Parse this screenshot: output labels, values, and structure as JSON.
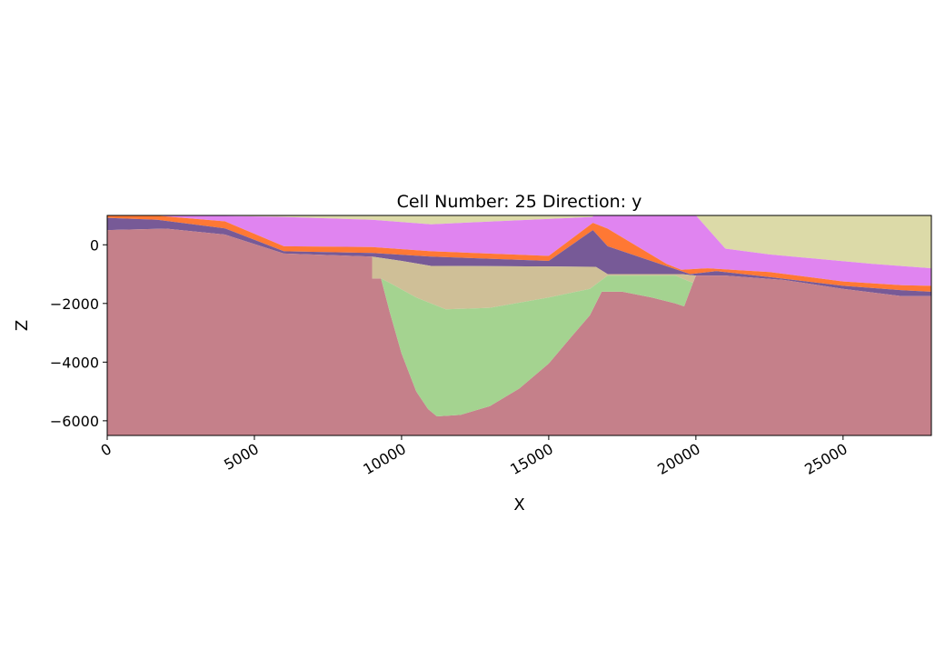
{
  "chart_data": {
    "type": "heatmap",
    "title": "Cell Number: 25 Direction: y",
    "xlabel": "X",
    "ylabel": "Z",
    "xlim": [
      0,
      28000
    ],
    "ylim": [
      -6500,
      1000
    ],
    "xticks": [
      0,
      5000,
      10000,
      15000,
      20000,
      25000
    ],
    "xtick_labels": [
      "0",
      "5000",
      "10000",
      "15000",
      "20000",
      "25000"
    ],
    "yticks": [
      0,
      -2000,
      -4000,
      -6000
    ],
    "ytick_labels": [
      "0",
      "−2000",
      "−4000",
      "−6000"
    ],
    "grid": false,
    "legend": "none",
    "colors": {
      "basement": "#c5808a",
      "intrusion": "#a4d390",
      "tan": "#cfbf97",
      "purple": "#775a97",
      "orange": "#ff7834",
      "pink": "#e084f0",
      "khaki": "#dcdaa8"
    },
    "units": [
      {
        "name": "khaki",
        "points": [
          [
            0,
            1000
          ],
          [
            28000,
            1000
          ],
          [
            28000,
            -800
          ],
          [
            26000,
            -650
          ],
          [
            22500,
            -330
          ],
          [
            21000,
            -130
          ],
          [
            20000,
            1000
          ],
          [
            16500,
            1000
          ],
          [
            16500,
            950
          ],
          [
            11000,
            700
          ],
          [
            9000,
            850
          ],
          [
            6000,
            950
          ],
          [
            3000,
            1000
          ]
        ]
      },
      {
        "name": "pink",
        "points": [
          [
            0,
            1000
          ],
          [
            3000,
            1000
          ],
          [
            6000,
            950
          ],
          [
            9000,
            850
          ],
          [
            11000,
            700
          ],
          [
            16500,
            950
          ],
          [
            16500,
            1000
          ],
          [
            20000,
            1000
          ],
          [
            21000,
            -130
          ],
          [
            22500,
            -330
          ],
          [
            26000,
            -650
          ],
          [
            28000,
            -800
          ],
          [
            28000,
            -1400
          ],
          [
            27000,
            -1380
          ],
          [
            25000,
            -1250
          ],
          [
            22500,
            -930
          ],
          [
            20400,
            -800
          ],
          [
            19500,
            -850
          ],
          [
            19000,
            -650
          ],
          [
            17000,
            550
          ],
          [
            16500,
            750
          ],
          [
            15000,
            -380
          ],
          [
            11000,
            -220
          ],
          [
            9000,
            -80
          ],
          [
            6000,
            -50
          ],
          [
            4000,
            800
          ],
          [
            1700,
            990
          ],
          [
            0,
            1000
          ]
        ]
      },
      {
        "name": "orange",
        "points": [
          [
            0,
            1000
          ],
          [
            1700,
            990
          ],
          [
            4000,
            800
          ],
          [
            6000,
            -50
          ],
          [
            9000,
            -80
          ],
          [
            11000,
            -220
          ],
          [
            15000,
            -380
          ],
          [
            16500,
            750
          ],
          [
            17000,
            550
          ],
          [
            19000,
            -650
          ],
          [
            19500,
            -850
          ],
          [
            20400,
            -800
          ],
          [
            22500,
            -930
          ],
          [
            25000,
            -1250
          ],
          [
            27000,
            -1380
          ],
          [
            28000,
            -1400
          ],
          [
            28000,
            -1600
          ],
          [
            27000,
            -1550
          ],
          [
            25000,
            -1400
          ],
          [
            22500,
            -1100
          ],
          [
            20700,
            -900
          ],
          [
            19800,
            -1000
          ],
          [
            17000,
            -50
          ],
          [
            16500,
            500
          ],
          [
            15000,
            -550
          ],
          [
            11000,
            -400
          ],
          [
            9000,
            -280
          ],
          [
            6000,
            -220
          ],
          [
            4000,
            560
          ],
          [
            1700,
            850
          ],
          [
            0,
            920
          ]
        ]
      },
      {
        "name": "purple",
        "points": [
          [
            0,
            920
          ],
          [
            1700,
            850
          ],
          [
            4000,
            560
          ],
          [
            6000,
            -220
          ],
          [
            9000,
            -280
          ],
          [
            11000,
            -400
          ],
          [
            15000,
            -550
          ],
          [
            16500,
            500
          ],
          [
            17000,
            -50
          ],
          [
            19800,
            -1000
          ],
          [
            20700,
            -900
          ],
          [
            22500,
            -1100
          ],
          [
            25000,
            -1400
          ],
          [
            27000,
            -1550
          ],
          [
            28000,
            -1600
          ],
          [
            28000,
            -1750
          ],
          [
            27000,
            -1750
          ],
          [
            25000,
            -1500
          ],
          [
            23000,
            -1200
          ],
          [
            21000,
            -1050
          ],
          [
            20000,
            -1050
          ],
          [
            19500,
            -1000
          ],
          [
            17000,
            -1000
          ],
          [
            16600,
            -750
          ],
          [
            15000,
            -740
          ],
          [
            11000,
            -720
          ],
          [
            10000,
            -550
          ],
          [
            9000,
            -400
          ],
          [
            6000,
            -300
          ],
          [
            4000,
            350
          ],
          [
            2000,
            550
          ],
          [
            0,
            500
          ]
        ]
      },
      {
        "name": "basement",
        "points": [
          [
            0,
            500
          ],
          [
            2000,
            550
          ],
          [
            4000,
            350
          ],
          [
            6000,
            -300
          ],
          [
            9000,
            -400
          ],
          [
            9000,
            -1150
          ],
          [
            9300,
            -1150
          ],
          [
            9600,
            -2300
          ],
          [
            10000,
            -3700
          ],
          [
            10500,
            -5000
          ],
          [
            10900,
            -5600
          ],
          [
            11200,
            -5850
          ],
          [
            12000,
            -5800
          ],
          [
            13000,
            -5500
          ],
          [
            14000,
            -4900
          ],
          [
            15000,
            -4050
          ],
          [
            15800,
            -3100
          ],
          [
            16400,
            -2400
          ],
          [
            16800,
            -1600
          ],
          [
            17500,
            -1600
          ],
          [
            18500,
            -1800
          ],
          [
            19300,
            -2000
          ],
          [
            19600,
            -2100
          ],
          [
            19900,
            -1300
          ],
          [
            20000,
            -1050
          ],
          [
            21000,
            -1050
          ],
          [
            23000,
            -1200
          ],
          [
            25000,
            -1500
          ],
          [
            27000,
            -1750
          ],
          [
            28000,
            -1750
          ],
          [
            28000,
            -6500
          ],
          [
            0,
            -6500
          ]
        ]
      },
      {
        "name": "tan",
        "points": [
          [
            9000,
            -400
          ],
          [
            10000,
            -550
          ],
          [
            11000,
            -720
          ],
          [
            15000,
            -740
          ],
          [
            16600,
            -750
          ],
          [
            17000,
            -1000
          ],
          [
            19500,
            -1000
          ],
          [
            20000,
            -1050
          ],
          [
            19900,
            -1300
          ],
          [
            19300,
            -1050
          ],
          [
            17000,
            -1050
          ],
          [
            16400,
            -1500
          ],
          [
            15000,
            -1800
          ],
          [
            13000,
            -2150
          ],
          [
            11500,
            -2200
          ],
          [
            10500,
            -1800
          ],
          [
            9600,
            -1300
          ],
          [
            9300,
            -1150
          ],
          [
            9000,
            -1150
          ]
        ]
      },
      {
        "name": "intrusion",
        "points": [
          [
            9300,
            -1150
          ],
          [
            9600,
            -1300
          ],
          [
            10500,
            -1800
          ],
          [
            11500,
            -2200
          ],
          [
            13000,
            -2150
          ],
          [
            15000,
            -1800
          ],
          [
            16400,
            -1500
          ],
          [
            17000,
            -1050
          ],
          [
            19300,
            -1050
          ],
          [
            19900,
            -1300
          ],
          [
            19600,
            -2100
          ],
          [
            19300,
            -2000
          ],
          [
            18500,
            -1800
          ],
          [
            17500,
            -1600
          ],
          [
            16800,
            -1600
          ],
          [
            16400,
            -2400
          ],
          [
            15800,
            -3100
          ],
          [
            15000,
            -4050
          ],
          [
            14000,
            -4900
          ],
          [
            13000,
            -5500
          ],
          [
            12000,
            -5800
          ],
          [
            11200,
            -5850
          ],
          [
            10900,
            -5600
          ],
          [
            10500,
            -5000
          ],
          [
            10000,
            -3700
          ],
          [
            9600,
            -2300
          ]
        ]
      }
    ]
  }
}
